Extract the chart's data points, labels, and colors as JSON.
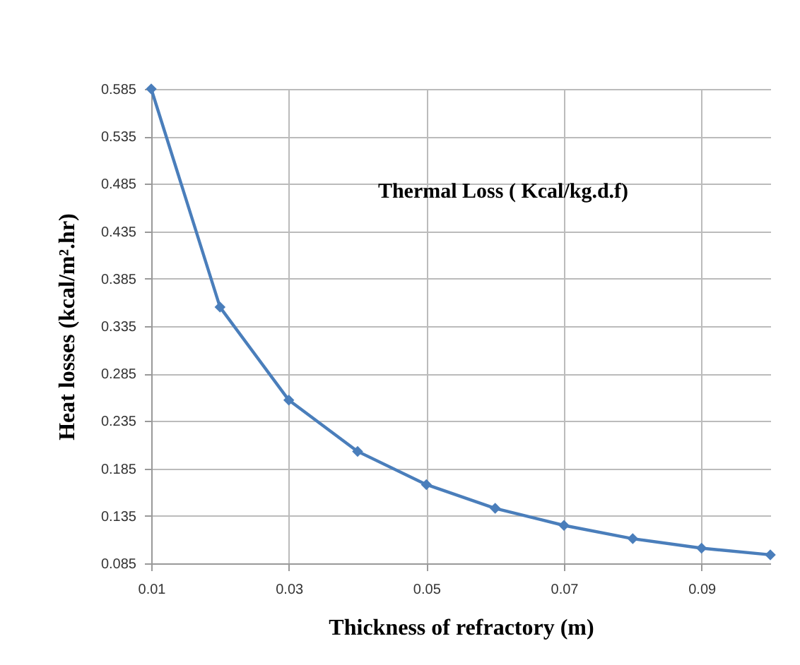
{
  "chart_data": {
    "type": "line",
    "title": "Thermal Loss ( Kcal/kg.d.f)",
    "xlabel": "Thickness of refractory (m)",
    "ylabel": "Heat losses (kcal/m².hr)",
    "x": [
      0.01,
      0.02,
      0.03,
      0.04,
      0.05,
      0.06,
      0.07,
      0.08,
      0.09,
      0.1
    ],
    "series": [
      {
        "color": "#4a7ebb",
        "values": [
          0.585,
          0.355,
          0.257,
          0.203,
          0.168,
          0.143,
          0.125,
          0.111,
          0.101,
          0.094
        ]
      }
    ],
    "xlim": [
      0.01,
      0.1
    ],
    "xticks": [
      0.01,
      0.03,
      0.05,
      0.07,
      0.09
    ],
    "ylim": [
      0.085,
      0.585
    ],
    "yticks": [
      0.085,
      0.135,
      0.185,
      0.235,
      0.285,
      0.335,
      0.385,
      0.435,
      0.485,
      0.535,
      0.585
    ],
    "grid": true,
    "marker": "diamond",
    "line_style": "solid"
  }
}
